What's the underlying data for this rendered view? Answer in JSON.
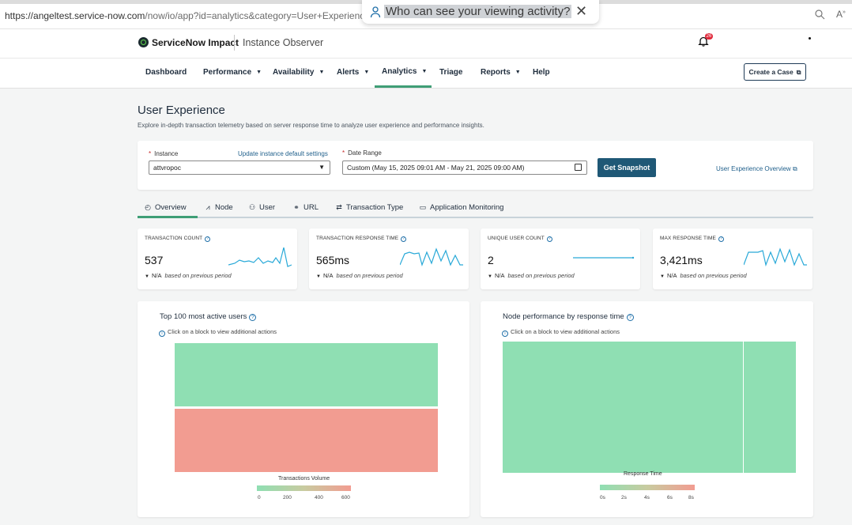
{
  "browser": {
    "url_main": "https://angeltest.service-now.com",
    "url_rest": "/now/io/app?id=analytics&category=User+Experience&instance=",
    "popup_text": "Who can see your viewing activity?"
  },
  "header": {
    "brand": "ServiceNow Impact",
    "product": "Instance Observer",
    "notification_count": "26"
  },
  "nav": {
    "items": [
      {
        "label": "Dashboard",
        "caret": false
      },
      {
        "label": "Performance",
        "caret": true
      },
      {
        "label": "Availability",
        "caret": true
      },
      {
        "label": "Alerts",
        "caret": true
      },
      {
        "label": "Analytics",
        "caret": true
      },
      {
        "label": "Triage",
        "caret": false
      },
      {
        "label": "Reports",
        "caret": true
      },
      {
        "label": "Help",
        "caret": false
      }
    ],
    "active": "Analytics",
    "create_case": "Create a Case"
  },
  "page": {
    "title": "User Experience",
    "subtitle": "Explore in-depth transaction telemetry based on server response time to analyze user experience and performance insights."
  },
  "filters": {
    "instance_label": "Instance",
    "instance_link": "Update instance default settings",
    "instance_value": "attvropoc",
    "date_label": "Date Range",
    "date_value": "Custom (May 15, 2025 09:01 AM - May 21, 2025 09:00 AM)",
    "snapshot_button": "Get Snapshot",
    "overview_link": "User Experience Overview"
  },
  "tabs": [
    {
      "label": "Overview",
      "icon": "gauge-icon"
    },
    {
      "label": "Node",
      "icon": "area-chart-icon"
    },
    {
      "label": "User",
      "icon": "users-icon"
    },
    {
      "label": "URL",
      "icon": "link-icon"
    },
    {
      "label": "Transaction Type",
      "icon": "swap-icon"
    },
    {
      "label": "Application Monitoring",
      "icon": "monitor-icon"
    }
  ],
  "active_tab": "Overview",
  "stats": [
    {
      "label": "TRANSACTION COUNT",
      "value": "537",
      "trend": "N/A",
      "trend_note": "based on previous period"
    },
    {
      "label": "TRANSACTION RESPONSE TIME",
      "value": "565ms",
      "trend": "N/A",
      "trend_note": "based on previous period"
    },
    {
      "label": "UNIQUE USER COUNT",
      "value": "2",
      "trend": "N/A",
      "trend_note": "based on previous period"
    },
    {
      "label": "MAX RESPONSE TIME",
      "value": "3,421ms",
      "trend": "N/A",
      "trend_note": "based on previous period"
    }
  ],
  "users_chart": {
    "title": "Top 100 most active users",
    "hint": "Click on a block to view additional actions",
    "legend_title": "Transactions Volume",
    "legend_ticks": [
      "0",
      "200",
      "400",
      "600"
    ]
  },
  "node_chart": {
    "title": "Node performance by response time",
    "hint": "Click on a block to view additional actions",
    "legend_title": "Response Time",
    "legend_ticks": [
      "0s",
      "2s",
      "4s",
      "6s",
      "8s"
    ]
  },
  "colors": {
    "accent": "#3f9e76",
    "primary_button": "#1f5876",
    "link": "#1f5f8b",
    "block_low": "#8fdfb3",
    "block_high": "#f29c91"
  }
}
